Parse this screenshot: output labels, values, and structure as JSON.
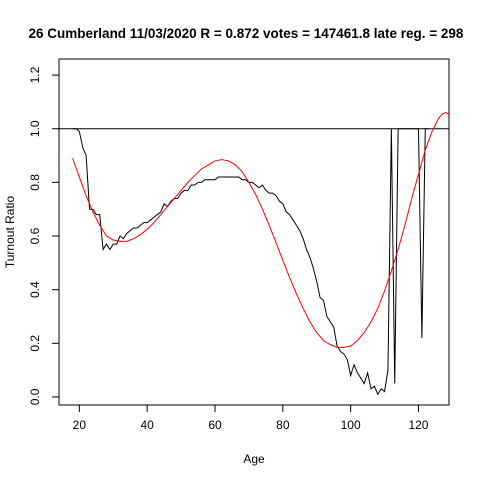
{
  "chart_data": {
    "type": "line",
    "title": "26 Cumberland 11/03/2020 R = 0.872 votes = 147461.8 late reg. = 298",
    "xlabel": "Age",
    "ylabel": "Turnout Ratio",
    "xlim": [
      14,
      129
    ],
    "ylim": [
      -0.03,
      1.26
    ],
    "x_ticks": [
      20,
      40,
      60,
      80,
      100,
      120
    ],
    "y_ticks": [
      0.0,
      0.2,
      0.4,
      0.6,
      0.8,
      1.0,
      1.2
    ],
    "y_tick_labels": [
      "0.0",
      "0.2",
      "0.4",
      "0.6",
      "0.8",
      "1.0",
      "1.2"
    ],
    "reference_line": {
      "y": 1.0,
      "color": "#000000"
    },
    "grid": false,
    "series": [
      {
        "color": "#000000",
        "x": [
          18,
          19,
          20,
          21,
          22,
          23,
          24,
          25,
          26,
          27,
          28,
          29,
          30,
          31,
          32,
          33,
          34,
          35,
          36,
          37,
          38,
          39,
          40,
          41,
          42,
          43,
          44,
          45,
          46,
          47,
          48,
          49,
          50,
          51,
          52,
          53,
          54,
          55,
          56,
          57,
          58,
          59,
          60,
          61,
          62,
          63,
          64,
          65,
          66,
          67,
          68,
          69,
          70,
          71,
          72,
          73,
          74,
          75,
          76,
          77,
          78,
          79,
          80,
          81,
          82,
          83,
          84,
          85,
          86,
          87,
          88,
          89,
          90,
          91,
          92,
          93,
          94,
          95,
          96,
          97,
          98,
          99,
          100,
          101,
          102,
          103,
          104,
          105,
          106,
          107,
          108,
          109,
          110,
          111,
          112,
          113,
          114,
          115,
          116,
          117,
          118,
          119,
          120,
          121,
          122,
          123
        ],
        "y": [
          1.0,
          1.0,
          0.99,
          0.93,
          0.9,
          0.7,
          0.7,
          0.68,
          0.68,
          0.55,
          0.57,
          0.55,
          0.57,
          0.57,
          0.6,
          0.59,
          0.61,
          0.62,
          0.63,
          0.63,
          0.64,
          0.65,
          0.65,
          0.66,
          0.67,
          0.68,
          0.69,
          0.72,
          0.71,
          0.73,
          0.74,
          0.74,
          0.76,
          0.77,
          0.77,
          0.79,
          0.79,
          0.8,
          0.8,
          0.81,
          0.81,
          0.81,
          0.81,
          0.82,
          0.82,
          0.82,
          0.82,
          0.82,
          0.82,
          0.82,
          0.81,
          0.81,
          0.8,
          0.8,
          0.79,
          0.78,
          0.79,
          0.77,
          0.76,
          0.76,
          0.75,
          0.73,
          0.72,
          0.69,
          0.68,
          0.66,
          0.64,
          0.62,
          0.59,
          0.55,
          0.52,
          0.48,
          0.43,
          0.37,
          0.36,
          0.3,
          0.28,
          0.26,
          0.19,
          0.17,
          0.16,
          0.14,
          0.08,
          0.12,
          0.09,
          0.07,
          0.05,
          0.09,
          0.03,
          0.04,
          0.01,
          0.03,
          0.02,
          0.1,
          1.0,
          0.05,
          1.0,
          1.0,
          1.0,
          1.0,
          1.0,
          1.0,
          1.0,
          0.22,
          1.0,
          1.0
        ]
      },
      {
        "color": "#ff0000",
        "x": [
          18,
          20,
          22,
          24,
          26,
          28,
          30,
          32,
          34,
          36,
          38,
          40,
          42,
          44,
          46,
          48,
          50,
          52,
          54,
          56,
          58,
          60,
          62,
          64,
          66,
          68,
          70,
          72,
          74,
          76,
          78,
          80,
          82,
          84,
          86,
          88,
          90,
          92,
          94,
          96,
          98,
          100,
          102,
          104,
          106,
          108,
          110,
          112,
          114,
          116,
          118,
          120,
          122,
          124,
          126,
          127,
          128,
          129
        ],
        "y": [
          0.89,
          0.82,
          0.75,
          0.69,
          0.64,
          0.6,
          0.585,
          0.58,
          0.58,
          0.59,
          0.605,
          0.625,
          0.65,
          0.68,
          0.71,
          0.74,
          0.77,
          0.8,
          0.825,
          0.85,
          0.865,
          0.88,
          0.885,
          0.88,
          0.865,
          0.84,
          0.8,
          0.755,
          0.7,
          0.64,
          0.575,
          0.51,
          0.445,
          0.385,
          0.33,
          0.28,
          0.24,
          0.21,
          0.195,
          0.185,
          0.185,
          0.19,
          0.21,
          0.24,
          0.28,
          0.33,
          0.395,
          0.47,
          0.55,
          0.64,
          0.74,
          0.83,
          0.92,
          0.99,
          1.04,
          1.055,
          1.06,
          1.055
        ]
      }
    ]
  }
}
